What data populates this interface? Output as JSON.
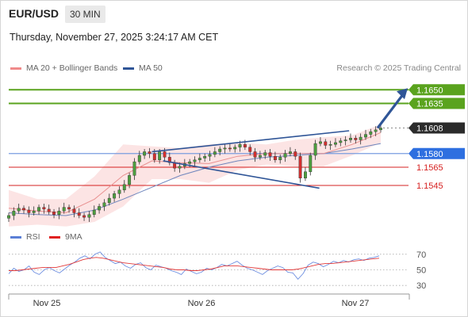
{
  "header": {
    "pair": "EUR/USD",
    "timeframe": "30 MIN",
    "datetime": "Thursday, November 27, 2025 3:24:17 AM CET"
  },
  "credit": "Research © 2025 Trading Central",
  "legend_main": [
    {
      "label": "MA 20 + Bollinger Bands",
      "color": "#f08a8a"
    },
    {
      "label": "MA 50",
      "color": "#2f5597"
    }
  ],
  "legend_rsi": [
    {
      "label": "RSI",
      "color": "#5b7fd6"
    },
    {
      "label": "9MA",
      "color": "#e02020"
    }
  ],
  "colors": {
    "resistance": "#5aa31e",
    "current": "#2b2b2b",
    "pivot": "#2e6fe0",
    "support": "#d62020",
    "channel": "#2f5597",
    "bull": "#4d9e3f",
    "bear": "#d32f2f"
  },
  "chart_data": [
    {
      "type": "candlestick",
      "title": "",
      "x_labels": [
        "Nov 25",
        "Nov 26",
        "Nov 27"
      ],
      "ylim": [
        1.1505,
        1.1665
      ],
      "levels": [
        {
          "value": 1.165,
          "label": "1.1650",
          "kind": "resistance"
        },
        {
          "value": 1.1635,
          "label": "1.1635",
          "kind": "resistance"
        },
        {
          "value": 1.1608,
          "label": "1.1608",
          "kind": "current"
        },
        {
          "value": 1.158,
          "label": "1.1580",
          "kind": "pivot"
        },
        {
          "value": 1.1565,
          "label": "1.1565",
          "kind": "support"
        },
        {
          "value": 1.1545,
          "label": "1.1545",
          "kind": "support"
        }
      ],
      "close_path": [
        1.1512,
        1.1517,
        1.152,
        1.1518,
        1.1515,
        1.1517,
        1.1521,
        1.1519,
        1.1516,
        1.1513,
        1.1517,
        1.1521,
        1.1519,
        1.1515,
        1.1512,
        1.151,
        1.1513,
        1.1518,
        1.1522,
        1.1526,
        1.1531,
        1.1536,
        1.154,
        1.1546,
        1.1556,
        1.1571,
        1.1578,
        1.1582,
        1.158,
        1.1573,
        1.1582,
        1.1576,
        1.157,
        1.1564,
        1.1566,
        1.1569,
        1.1571,
        1.1573,
        1.1575,
        1.1577,
        1.1579,
        1.1582,
        1.1585,
        1.1586,
        1.1585,
        1.1587,
        1.159,
        1.1587,
        1.1582,
        1.1576,
        1.1578,
        1.1581,
        1.1577,
        1.1573,
        1.1576,
        1.158,
        1.1582,
        1.1577,
        1.1553,
        1.156,
        1.1578,
        1.1591,
        1.1593,
        1.1589,
        1.159,
        1.1592,
        1.1594,
        1.1595,
        1.1597,
        1.1595,
        1.1598,
        1.1601,
        1.1604,
        1.1606,
        1.1608
      ],
      "ma20": [
        1.152,
        1.1517,
        1.1515,
        1.153,
        1.1556,
        1.1572,
        1.157,
        1.1569,
        1.1577,
        1.158,
        1.158,
        1.158,
        1.159,
        1.1603
      ],
      "ma50": [
        1.1515,
        1.1513,
        1.1512,
        1.1518,
        1.153,
        1.1543,
        1.1556,
        1.1565,
        1.1572,
        1.1576,
        1.1578,
        1.158,
        1.1585,
        1.1591
      ],
      "bb_upper": [
        1.154,
        1.153,
        1.153,
        1.1555,
        1.159,
        1.1588,
        1.1586,
        1.159,
        1.1592,
        1.159,
        1.1595,
        1.1598,
        1.16,
        1.1612
      ],
      "bb_lower": [
        1.15,
        1.1502,
        1.15,
        1.1505,
        1.1522,
        1.1552,
        1.1552,
        1.1548,
        1.1562,
        1.1568,
        1.1566,
        1.1566,
        1.1578,
        1.1592
      ],
      "channel_upper": [
        [
          1.1582,
          1.1605
        ]
      ],
      "channel_lower": [
        [
          1.1572,
          1.1542
        ]
      ],
      "forecast_arrow": [
        1.1608,
        1.165
      ]
    },
    {
      "type": "line",
      "title": "",
      "yticks": [
        70,
        50,
        30
      ],
      "ylim": [
        20,
        80
      ],
      "series": [
        {
          "name": "RSI",
          "values": [
            45,
            52,
            48,
            50,
            55,
            47,
            44,
            50,
            53,
            49,
            46,
            51,
            56,
            60,
            65,
            68,
            64,
            70,
            73,
            66,
            62,
            58,
            60,
            55,
            52,
            57,
            59,
            53,
            50,
            56,
            54,
            52,
            49,
            47,
            44,
            51,
            48,
            45,
            47,
            52,
            50,
            53,
            57,
            55,
            58,
            61,
            56,
            52,
            50,
            47,
            44,
            49,
            52,
            55,
            53,
            47,
            46,
            38,
            45,
            56,
            60,
            58,
            54,
            57,
            61,
            59,
            62,
            60,
            63,
            64,
            62,
            65,
            66,
            68
          ]
        },
        {
          "name": "9MA",
          "values": [
            49,
            49,
            50,
            51,
            52,
            53,
            53,
            53,
            55,
            57,
            60,
            63,
            65,
            66,
            65,
            63,
            61,
            59,
            58,
            57,
            56,
            55,
            54,
            53,
            51,
            50,
            50,
            49,
            49,
            50,
            51,
            53,
            55,
            55,
            55,
            54,
            53,
            52,
            51,
            50,
            50,
            50,
            50,
            51,
            53,
            55,
            57,
            58,
            58,
            59,
            60,
            61,
            62,
            63,
            64,
            65
          ]
        }
      ]
    }
  ]
}
